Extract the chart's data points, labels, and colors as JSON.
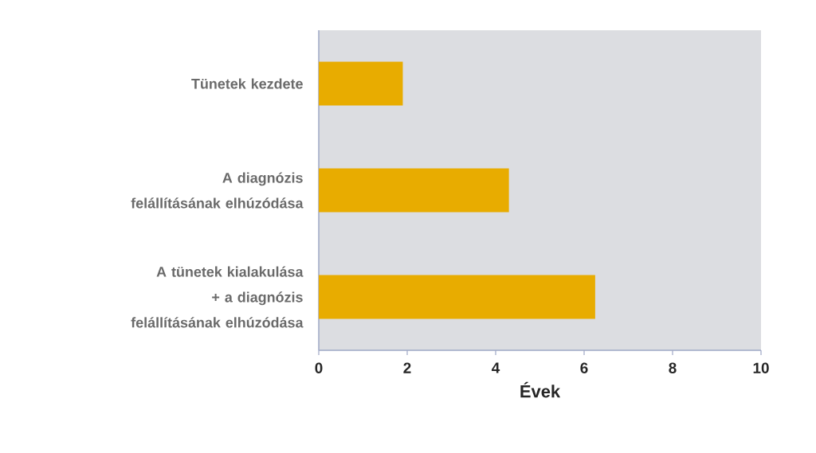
{
  "chart_data": {
    "type": "bar",
    "orientation": "horizontal",
    "categories": [
      "Tünetek kezdete",
      "A diagnózis felállításának elhúzódása",
      "A tünetek kialakulása + a diagnózis felállításának elhúzódása"
    ],
    "values": [
      1.9,
      4.3,
      6.25
    ],
    "color": "#e8ac00",
    "xlim": [
      0,
      10
    ],
    "xticks": [
      0,
      2,
      4,
      6,
      8,
      10
    ],
    "xlabel": "Évek"
  }
}
